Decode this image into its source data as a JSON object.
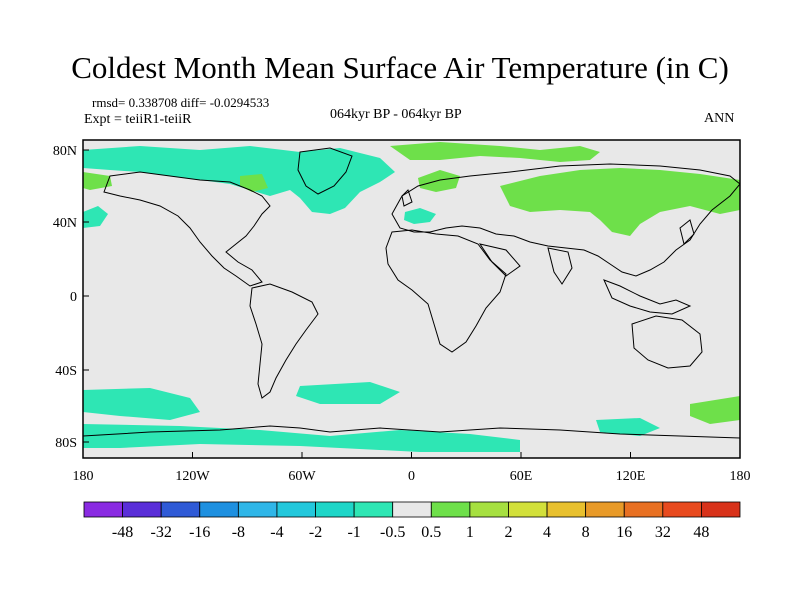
{
  "title": "Coldest Month Mean Surface Air Temperature (in C)",
  "stats": {
    "rmsd_label": "rmsd= 0.338708",
    "diff_label": "diff= -0.0294533"
  },
  "experiment": "Expt = teiiR1-teiiR",
  "period": "064kyr BP - 064kyr BP",
  "season": "ANN",
  "axes": {
    "lat_ticks": [
      "80N",
      "40N",
      "0",
      "40S",
      "80S"
    ],
    "lon_ticks": [
      "180",
      "120W",
      "60W",
      "0",
      "60E",
      "120E",
      "180"
    ]
  },
  "colorbar": {
    "labels": [
      "-48",
      "-32",
      "-16",
      "-8",
      "-4",
      "-2",
      "-1",
      "-0.5",
      "0.5",
      "1",
      "2",
      "4",
      "8",
      "16",
      "32",
      "48"
    ],
    "colors": [
      "#8a2be2",
      "#5a2ed8",
      "#2f5ad6",
      "#1e90e0",
      "#2fb6e8",
      "#23c8dc",
      "#1ed6c8",
      "#2ee6b4",
      "#e8e8e8",
      "#6ee04a",
      "#a6e040",
      "#d2e03a",
      "#e8c02e",
      "#e89a28",
      "#e87022",
      "#e84a1e",
      "#d8321a"
    ]
  },
  "map": {
    "background": "#e8e8e8",
    "cool_color": "#2ee6b4",
    "cool_strong_color": "#23c8dc",
    "warm_color": "#6ee04a",
    "warm_strong_color": "#a6e040"
  }
}
